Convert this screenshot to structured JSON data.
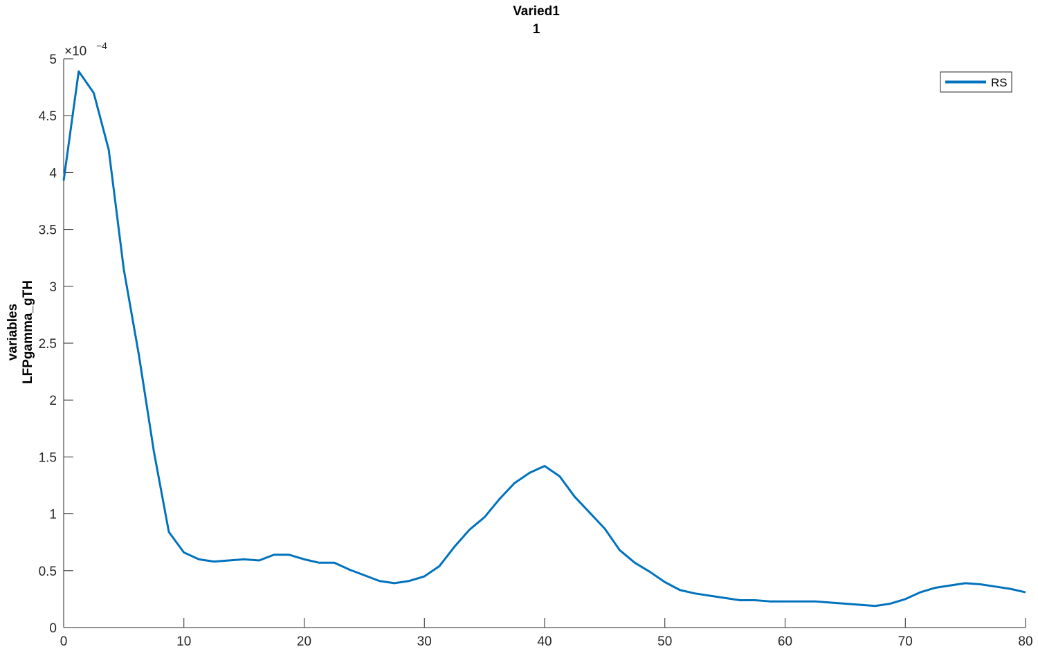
{
  "chart_data": {
    "type": "line",
    "title": "Varied1",
    "subtitle": "1",
    "ylabel_lines": [
      "variables",
      "LFPgamma_gTH"
    ],
    "xlabel": "",
    "xlim": [
      0,
      80
    ],
    "ylim": [
      0,
      0.0005
    ],
    "y_exponent_base": "×10",
    "y_exponent_power": "−4",
    "xticks": [
      0,
      10,
      20,
      30,
      40,
      50,
      60,
      70,
      80
    ],
    "xtick_labels": [
      "0",
      "10",
      "20",
      "30",
      "40",
      "50",
      "60",
      "70",
      "80"
    ],
    "yticks": [
      0,
      5e-05,
      0.0001,
      0.00015,
      0.0002,
      0.00025,
      0.0003,
      0.00035,
      0.0004,
      0.00045,
      0.0005
    ],
    "ytick_labels": [
      "0",
      "0.5",
      "1",
      "1.5",
      "2",
      "2.5",
      "3",
      "3.5",
      "4",
      "4.5",
      "5"
    ],
    "grid": false,
    "legend_position": "top-right",
    "line_color": "#0072BD",
    "series": [
      {
        "name": "RS",
        "x": [
          0,
          1.25,
          2.5,
          3.75,
          5,
          6.25,
          7.5,
          8.75,
          10,
          11.25,
          12.5,
          13.75,
          15,
          16.25,
          17.5,
          18.75,
          20,
          21.25,
          22.5,
          23.75,
          25,
          26.25,
          27.5,
          28.75,
          30,
          31.25,
          32.5,
          33.75,
          35,
          36.25,
          37.5,
          38.75,
          40,
          41.25,
          42.5,
          43.75,
          45,
          46.25,
          47.5,
          48.75,
          50,
          51.25,
          52.5,
          53.75,
          55,
          56.25,
          57.5,
          58.75,
          60,
          61.25,
          62.5,
          63.75,
          65,
          66.25,
          67.5,
          68.75,
          70,
          71.25,
          72.5,
          73.75,
          75,
          76.25,
          77.5,
          78.75,
          80
        ],
        "values": [
          0.000393,
          0.000489,
          0.00047,
          0.00042,
          0.000315,
          0.00024,
          0.000155,
          8.4e-05,
          6.6e-05,
          6e-05,
          5.8e-05,
          5.9e-05,
          6e-05,
          5.9e-05,
          6.4e-05,
          6.4e-05,
          6e-05,
          5.7e-05,
          5.7e-05,
          5.1e-05,
          4.6e-05,
          4.1e-05,
          3.9e-05,
          4.1e-05,
          4.5e-05,
          5.4e-05,
          7.1e-05,
          8.6e-05,
          9.7e-05,
          0.000113,
          0.000127,
          0.000136,
          0.000142,
          0.000133,
          0.000115,
          0.000101,
          8.7e-05,
          6.8e-05,
          5.7e-05,
          4.9e-05,
          4e-05,
          3.3e-05,
          3e-05,
          2.8e-05,
          2.6e-05,
          2.4e-05,
          2.4e-05,
          2.3e-05,
          2.3e-05,
          2.3e-05,
          2.3e-05,
          2.2e-05,
          2.1e-05,
          2e-05,
          1.9e-05,
          2.1e-05,
          2.5e-05,
          3.1e-05,
          3.5e-05,
          3.7e-05,
          3.9e-05,
          3.8e-05,
          3.6e-05,
          3.4e-05,
          3.1e-05
        ]
      }
    ]
  }
}
